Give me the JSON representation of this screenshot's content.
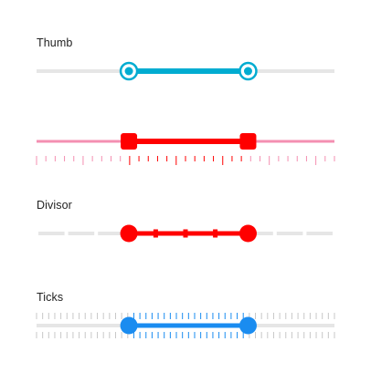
{
  "sliders": [
    {
      "label": "Thumb",
      "style": "ring-thumb",
      "range": {
        "start": 0.31,
        "end": 0.71
      },
      "colors": {
        "inactive_track": "#e6e6e6",
        "active_track": "#00acd1",
        "thumb_ring": "#00acd1",
        "thumb_fill": "#ffffff"
      }
    },
    {
      "label": "",
      "style": "square-thumb-with-scale",
      "range": {
        "start": 0.31,
        "end": 0.71
      },
      "colors": {
        "inactive_track": "#f48fb1",
        "active_track": "#ff0000",
        "thumb": "#ff0000",
        "ticks": "#f48fb1",
        "ticks_active": "#ff0000"
      }
    },
    {
      "label": "Divisor",
      "style": "divisor-track",
      "range": {
        "start": 0.31,
        "end": 0.71
      },
      "divisions": 10,
      "colors": {
        "inactive_track": "#e6e6e6",
        "active_track": "#ff0000",
        "thumb": "#ff0000",
        "divider_light": "#ffffff",
        "divider_active": "#ff0000"
      }
    },
    {
      "label": "Ticks",
      "style": "tick-marks",
      "range": {
        "start": 0.31,
        "end": 0.71
      },
      "colors": {
        "inactive_track": "#e6e6e6",
        "active_track": "#1a8cf0",
        "thumb": "#1a8cf0",
        "ticks": "#c8c8c8",
        "ticks_active": "#1a8cf0"
      }
    }
  ]
}
